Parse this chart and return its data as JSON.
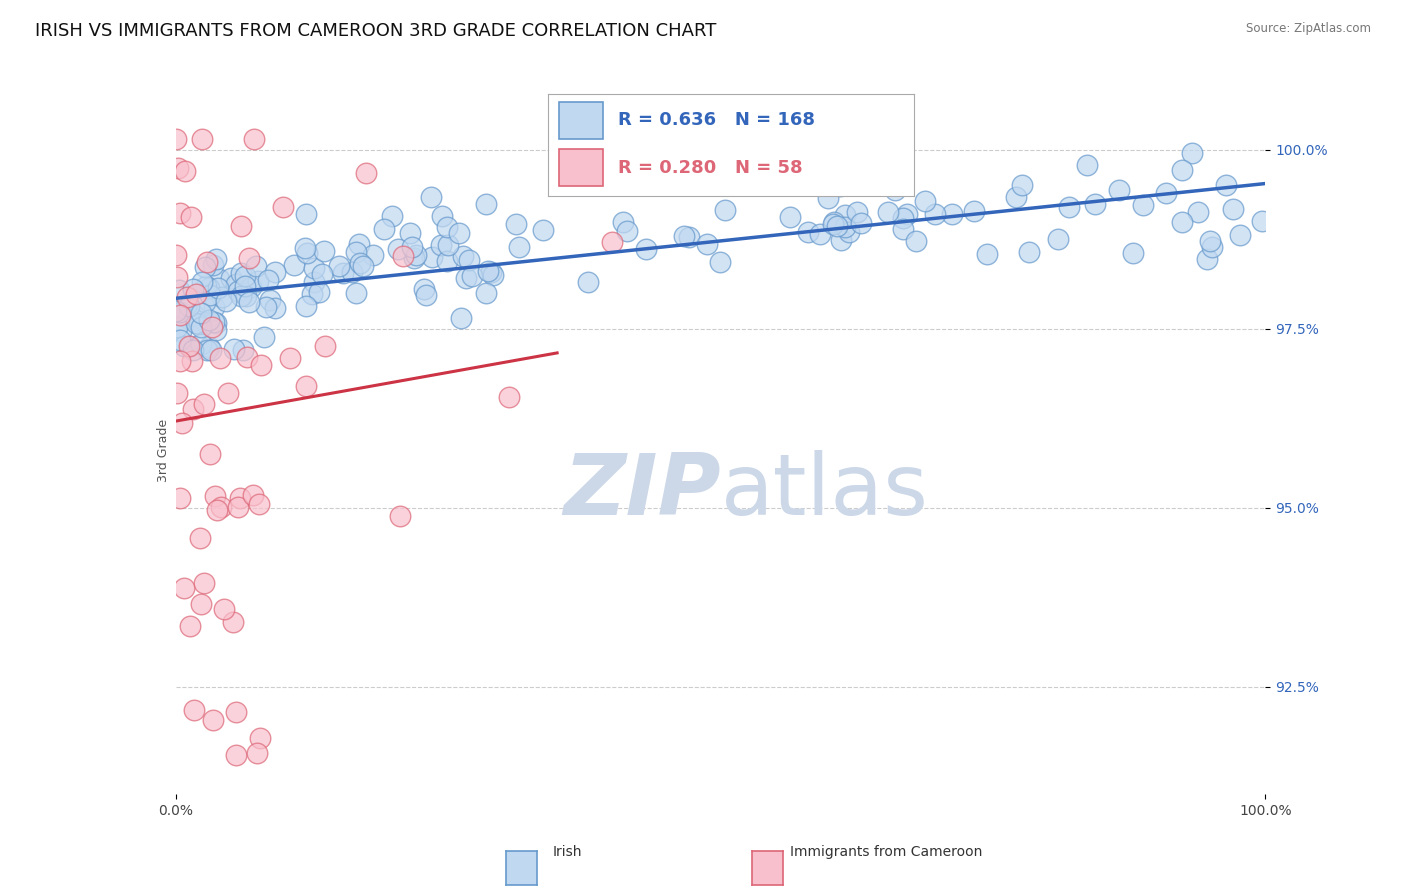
{
  "title": "IRISH VS IMMIGRANTS FROM CAMEROON 3RD GRADE CORRELATION CHART",
  "source": "Source: ZipAtlas.com",
  "ylabel": "3rd Grade",
  "y_tick_labels": [
    "92.5%",
    "95.0%",
    "97.5%",
    "100.0%"
  ],
  "y_tick_values": [
    92.5,
    95.0,
    97.5,
    100.0
  ],
  "y_min": 91.0,
  "y_max": 100.6,
  "x_min": 0.0,
  "x_max": 100.0,
  "R_irish": 0.636,
  "N_irish": 168,
  "R_cameroon": 0.28,
  "N_cameroon": 58,
  "irish_fill": "#c0d8f0",
  "irish_edge": "#6699cc",
  "cameroon_fill": "#f8c0cc",
  "cameroon_edge": "#dd6677",
  "irish_line_color": "#3366bb",
  "cameroon_line_color": "#cc3344",
  "watermark_color": "#ccd8e8",
  "background_color": "#ffffff",
  "title_fontsize": 13,
  "axis_label_fontsize": 9,
  "tick_fontsize": 10,
  "legend_fontsize": 13
}
